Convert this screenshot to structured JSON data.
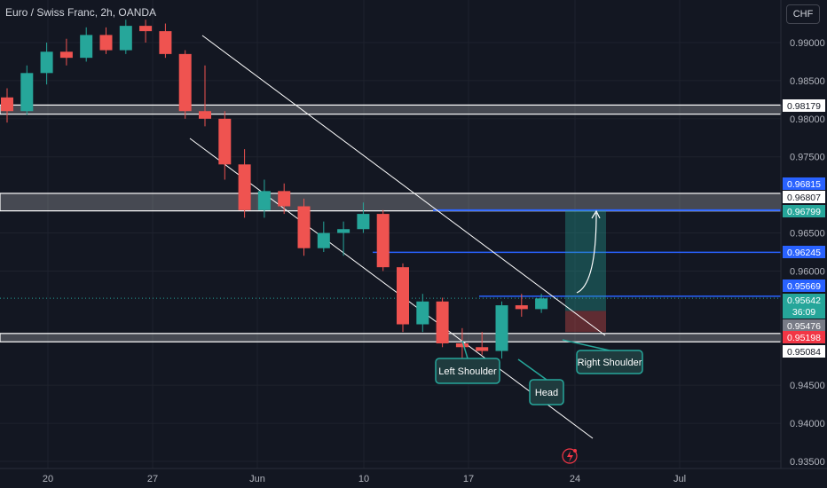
{
  "header": {
    "symbol_title": "Euro / Swiss Franc, 2h, OANDA",
    "currency_button": "CHF"
  },
  "colors": {
    "background": "#131722",
    "up": "#26a69a",
    "down": "#ef5350",
    "zone": "#ffffff",
    "blue_line": "#2962ff",
    "annotation": "#26a69a"
  },
  "chart_data": {
    "type": "candlestick",
    "title": "Euro / Swiss Franc, 2h, OANDA",
    "x_tick_labels": [
      "20",
      "27",
      "Jun",
      "10",
      "17",
      "24",
      "Jul"
    ],
    "y_tick_labels": [
      "0.99000",
      "0.98500",
      "0.98000",
      "0.97500",
      "0.96500",
      "0.96000",
      "0.94500",
      "0.94000",
      "0.93500"
    ],
    "ylim": [
      0.9335,
      0.9935
    ],
    "series": [
      {
        "values": [
          [
            0.9828,
            0.984,
            0.9795,
            0.981
          ],
          [
            0.981,
            0.987,
            0.9805,
            0.986
          ],
          [
            0.986,
            0.99,
            0.9845,
            0.9888
          ],
          [
            0.9888,
            0.9905,
            0.987,
            0.988
          ],
          [
            0.988,
            0.992,
            0.9875,
            0.991
          ],
          [
            0.991,
            0.992,
            0.9885,
            0.989
          ],
          [
            0.989,
            0.993,
            0.9885,
            0.9922
          ],
          [
            0.9922,
            0.993,
            0.99,
            0.9915
          ],
          [
            0.9915,
            0.9925,
            0.988,
            0.9885
          ],
          [
            0.9885,
            0.989,
            0.98,
            0.981
          ],
          [
            0.981,
            0.987,
            0.979,
            0.98
          ],
          [
            0.98,
            0.981,
            0.972,
            0.974
          ],
          [
            0.974,
            0.976,
            0.967,
            0.968
          ],
          [
            0.968,
            0.972,
            0.967,
            0.9705
          ],
          [
            0.9705,
            0.9715,
            0.9675,
            0.9685
          ],
          [
            0.9685,
            0.9695,
            0.962,
            0.963
          ],
          [
            0.963,
            0.9665,
            0.9625,
            0.965
          ],
          [
            0.965,
            0.9665,
            0.962,
            0.9655
          ],
          [
            0.9655,
            0.969,
            0.965,
            0.9675
          ],
          [
            0.9675,
            0.968,
            0.96,
            0.9605
          ],
          [
            0.9605,
            0.961,
            0.952,
            0.953
          ],
          [
            0.953,
            0.957,
            0.952,
            0.956
          ],
          [
            0.956,
            0.9565,
            0.95,
            0.9505
          ],
          [
            0.9505,
            0.9525,
            0.9485,
            0.95
          ],
          [
            0.95,
            0.952,
            0.949,
            0.9495
          ],
          [
            0.9495,
            0.956,
            0.9485,
            0.9555
          ],
          [
            0.9555,
            0.957,
            0.954,
            0.955
          ],
          [
            0.955,
            0.957,
            0.9545,
            0.9564
          ]
        ]
      }
    ],
    "price_labels": [
      {
        "value": 0.98179,
        "label": "0.98179",
        "bg": "#ffffff",
        "fg": "#131722"
      },
      {
        "value": 0.96815,
        "label": "0.96815",
        "bg": "#2962ff",
        "fg": "#ffffff"
      },
      {
        "value": 0.96807,
        "label": "0.96807",
        "bg": "#ffffff",
        "fg": "#131722"
      },
      {
        "value": 0.96799,
        "label": "0.96799",
        "bg": "#26a69a",
        "fg": "#ffffff"
      },
      {
        "value": 0.96245,
        "label": "0.96245",
        "bg": "#2962ff",
        "fg": "#ffffff"
      },
      {
        "value": 0.95669,
        "label": "0.95669",
        "bg": "#2962ff",
        "fg": "#ffffff"
      },
      {
        "value": 0.95642,
        "label": "0.95642",
        "sub": "36:09",
        "bg": "#26a69a",
        "fg": "#ffffff"
      },
      {
        "value": 0.95476,
        "label": "0.95476",
        "bg": "#787b86",
        "fg": "#ffffff"
      },
      {
        "value": 0.95198,
        "label": "0.95198",
        "bg": "#f23645",
        "fg": "#ffffff"
      },
      {
        "value": 0.95084,
        "label": "0.95084",
        "bg": "#ffffff",
        "fg": "#131722"
      }
    ],
    "zones": [
      {
        "from": 0.9806,
        "to": 0.9818
      },
      {
        "from": 0.9679,
        "to": 0.9702
      },
      {
        "from": 0.9507,
        "to": 0.9518
      }
    ],
    "horizontal_lines": [
      {
        "value": 0.96799,
        "color": "#2962ff"
      },
      {
        "value": 0.96245,
        "color": "#2962ff"
      },
      {
        "value": 0.95669,
        "color": "#2962ff"
      }
    ],
    "channel": {
      "upper": [
        [
          0.9905,
          "May 29"
        ],
        [
          0.9515,
          "Jun 26"
        ]
      ],
      "lower": [
        [
          0.978,
          "May 24"
        ],
        [
          0.9385,
          "Jun 26"
        ]
      ]
    },
    "position": {
      "entry": 0.95476,
      "target": 0.96799,
      "stop": 0.95198
    },
    "annotations": [
      "Left Shoulder",
      "Head",
      "Right Shoulder"
    ]
  }
}
